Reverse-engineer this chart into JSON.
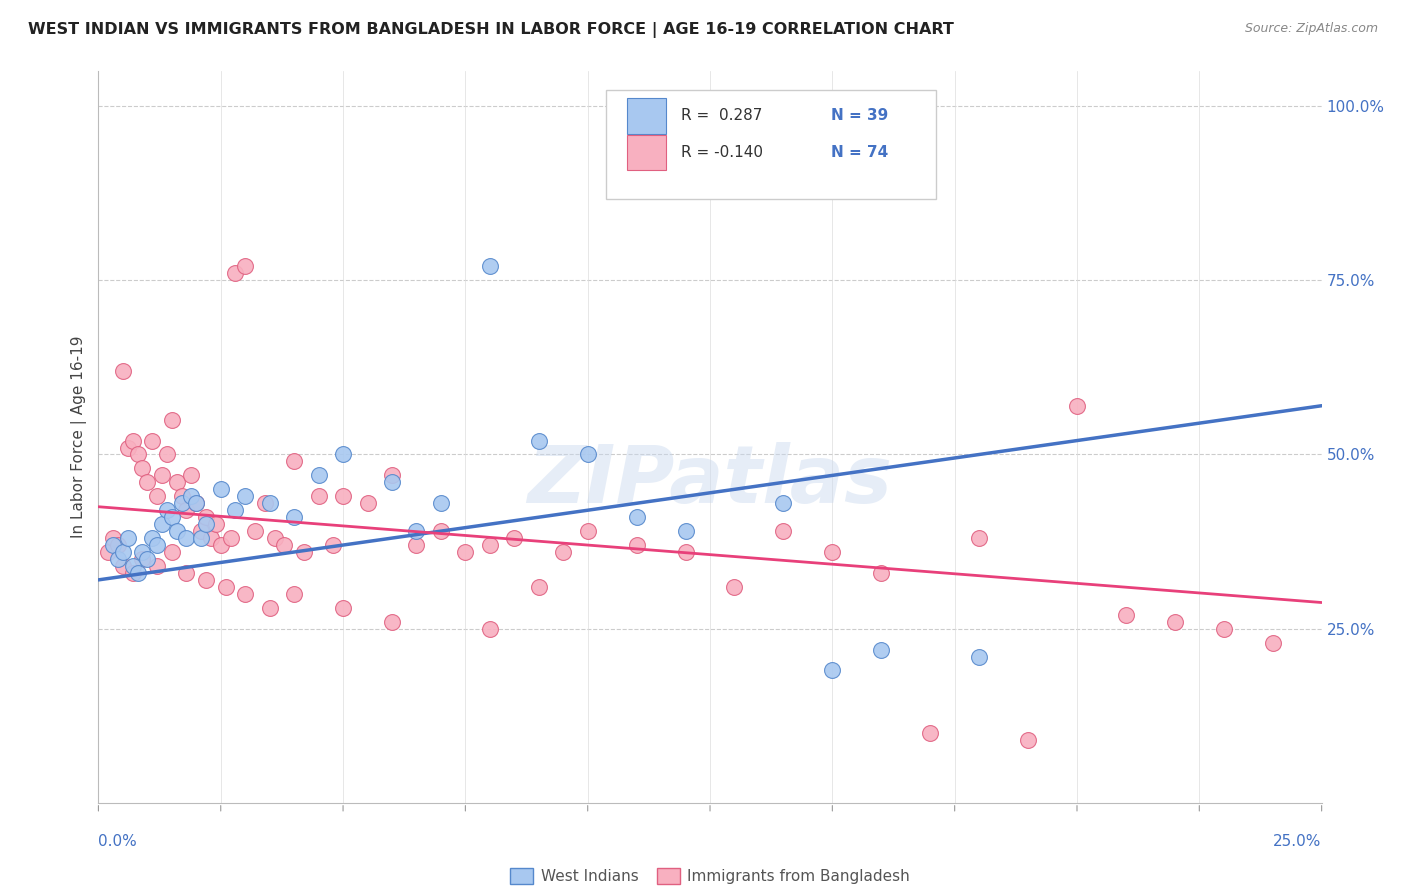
{
  "title": "WEST INDIAN VS IMMIGRANTS FROM BANGLADESH IN LABOR FORCE | AGE 16-19 CORRELATION CHART",
  "source": "Source: ZipAtlas.com",
  "ylabel": "In Labor Force | Age 16-19",
  "ylabel_right_ticks": [
    "25.0%",
    "50.0%",
    "75.0%",
    "100.0%"
  ],
  "ylabel_right_vals": [
    0.25,
    0.5,
    0.75,
    1.0
  ],
  "xmin": 0.0,
  "xmax": 0.25,
  "ymin": 0.0,
  "ymax": 1.05,
  "west_indian_color": "#A8C8F0",
  "west_indian_edge": "#5588CC",
  "bangladesh_color": "#F8B0C0",
  "bangladesh_edge": "#E06080",
  "trend1_color": "#4472C4",
  "trend2_color": "#E8407A",
  "watermark": "ZIPatlas",
  "west_indian_x": [
    0.003,
    0.004,
    0.005,
    0.006,
    0.007,
    0.008,
    0.009,
    0.01,
    0.011,
    0.012,
    0.013,
    0.014,
    0.015,
    0.016,
    0.017,
    0.018,
    0.019,
    0.02,
    0.021,
    0.022,
    0.025,
    0.028,
    0.03,
    0.035,
    0.04,
    0.045,
    0.05,
    0.06,
    0.065,
    0.07,
    0.08,
    0.09,
    0.1,
    0.11,
    0.12,
    0.14,
    0.15,
    0.16,
    0.18
  ],
  "west_indian_y": [
    0.37,
    0.35,
    0.36,
    0.38,
    0.34,
    0.33,
    0.36,
    0.35,
    0.38,
    0.37,
    0.4,
    0.42,
    0.41,
    0.39,
    0.43,
    0.38,
    0.44,
    0.43,
    0.38,
    0.4,
    0.45,
    0.42,
    0.44,
    0.43,
    0.41,
    0.47,
    0.5,
    0.46,
    0.39,
    0.43,
    0.77,
    0.52,
    0.5,
    0.41,
    0.39,
    0.43,
    0.19,
    0.22,
    0.21
  ],
  "bangladesh_x": [
    0.002,
    0.003,
    0.004,
    0.005,
    0.006,
    0.007,
    0.008,
    0.009,
    0.01,
    0.011,
    0.012,
    0.013,
    0.014,
    0.015,
    0.016,
    0.017,
    0.018,
    0.019,
    0.02,
    0.021,
    0.022,
    0.023,
    0.024,
    0.025,
    0.027,
    0.028,
    0.03,
    0.032,
    0.034,
    0.036,
    0.038,
    0.04,
    0.042,
    0.045,
    0.048,
    0.05,
    0.055,
    0.06,
    0.065,
    0.07,
    0.075,
    0.08,
    0.085,
    0.09,
    0.095,
    0.1,
    0.11,
    0.12,
    0.13,
    0.14,
    0.15,
    0.16,
    0.17,
    0.18,
    0.19,
    0.2,
    0.21,
    0.22,
    0.23,
    0.24,
    0.005,
    0.007,
    0.009,
    0.012,
    0.015,
    0.018,
    0.022,
    0.026,
    0.03,
    0.035,
    0.04,
    0.05,
    0.06,
    0.08
  ],
  "bangladesh_y": [
    0.36,
    0.38,
    0.37,
    0.62,
    0.51,
    0.52,
    0.5,
    0.48,
    0.46,
    0.52,
    0.44,
    0.47,
    0.5,
    0.55,
    0.46,
    0.44,
    0.42,
    0.47,
    0.43,
    0.39,
    0.41,
    0.38,
    0.4,
    0.37,
    0.38,
    0.76,
    0.77,
    0.39,
    0.43,
    0.38,
    0.37,
    0.49,
    0.36,
    0.44,
    0.37,
    0.44,
    0.43,
    0.47,
    0.37,
    0.39,
    0.36,
    0.37,
    0.38,
    0.31,
    0.36,
    0.39,
    0.37,
    0.36,
    0.31,
    0.39,
    0.36,
    0.33,
    0.1,
    0.38,
    0.09,
    0.57,
    0.27,
    0.26,
    0.25,
    0.23,
    0.34,
    0.33,
    0.35,
    0.34,
    0.36,
    0.33,
    0.32,
    0.31,
    0.3,
    0.28,
    0.3,
    0.28,
    0.26,
    0.25
  ]
}
